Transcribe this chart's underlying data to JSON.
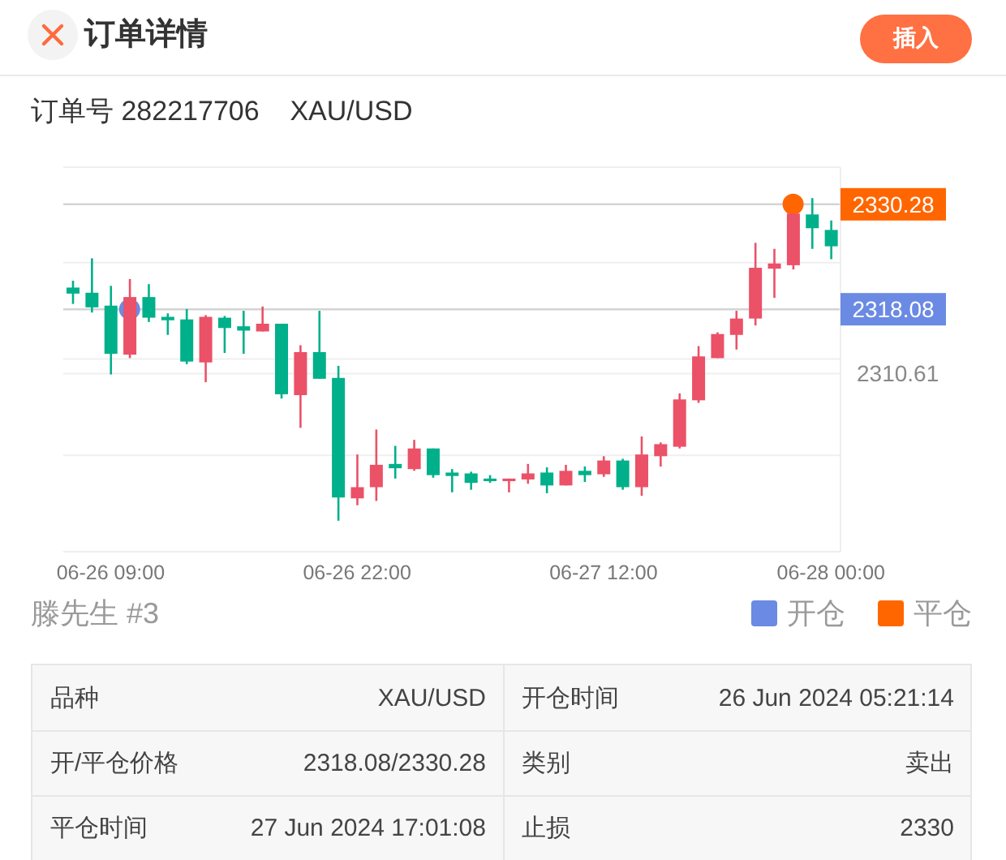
{
  "chart_data": {
    "type": "candlestick",
    "title": "订单详情",
    "subtitle": "订单号 282217706    XAU/USD",
    "annotations": [
      "插入",
      "滕先生 #3",
      "品种",
      "XAU/USD",
      "开仓时间",
      "26 Jun 2024 05:21:14",
      "开/平仓价格",
      "2318.08/2330.28",
      "类别",
      "卖出",
      "平仓时间",
      "27 Jun 2024 17:01:08",
      "止损",
      "2330"
    ],
    "categories": [
      null,
      null,
      "06-26 09:00",
      null,
      null,
      null,
      null,
      null,
      null,
      null,
      null,
      null,
      null,
      null,
      null,
      "06-26 22:00",
      null,
      null,
      null,
      null,
      null,
      null,
      null,
      null,
      null,
      null,
      null,
      null,
      "06-27 12:00",
      null,
      null,
      null,
      null,
      null,
      null,
      null,
      null,
      null,
      null,
      null,
      "06-28 00:00"
    ],
    "ohlc": [
      [
        2320.6,
        2321.4,
        2318.7,
        2319.9
      ],
      [
        2320.0,
        2324.0,
        2317.7,
        2318.3
      ],
      [
        2318.5,
        2320.8,
        2310.5,
        2312.9
      ],
      [
        2312.8,
        2321.6,
        2312.4,
        2319.5
      ],
      [
        2319.5,
        2321.0,
        2316.6,
        2317.1
      ],
      [
        2317.2,
        2317.6,
        2315.1,
        2316.8
      ],
      [
        2316.9,
        2318.1,
        2311.7,
        2312.0
      ],
      [
        2311.9,
        2317.4,
        2309.6,
        2317.2
      ],
      [
        2317.1,
        2317.3,
        2313.0,
        2315.9
      ],
      [
        2316.1,
        2317.9,
        2312.9,
        2315.6
      ],
      [
        2315.5,
        2318.4,
        2315.5,
        2316.4
      ],
      [
        2316.4,
        2316.4,
        2307.7,
        2308.2
      ],
      [
        2308.1,
        2313.9,
        2304.3,
        2313.1
      ],
      [
        2313.1,
        2317.9,
        2310.0,
        2310.0
      ],
      [
        2310.1,
        2311.5,
        2293.5,
        2296.2
      ],
      [
        2296.1,
        2301.2,
        2295.3,
        2297.4
      ],
      [
        2297.4,
        2304.1,
        2295.8,
        2300.0
      ],
      [
        2300.1,
        2302.2,
        2298.4,
        2299.6
      ],
      [
        2299.5,
        2302.9,
        2299.3,
        2301.9
      ],
      [
        2301.9,
        2301.9,
        2298.5,
        2298.8
      ],
      [
        2299.1,
        2299.5,
        2296.8,
        2298.7
      ],
      [
        2299.0,
        2299.2,
        2297.1,
        2297.9
      ],
      [
        2298.4,
        2298.8,
        2297.9,
        2298.1
      ],
      [
        2298.1,
        2298.4,
        2296.8,
        2298.4
      ],
      [
        2298.3,
        2300.1,
        2297.8,
        2299.0
      ],
      [
        2299.1,
        2299.7,
        2296.7,
        2297.6
      ],
      [
        2297.6,
        2300.0,
        2297.6,
        2299.3
      ],
      [
        2299.3,
        2299.8,
        2298.0,
        2298.8
      ],
      [
        2298.9,
        2301.0,
        2298.6,
        2300.5
      ],
      [
        2300.5,
        2300.7,
        2297.1,
        2297.4
      ],
      [
        2297.4,
        2303.3,
        2296.4,
        2301.2
      ],
      [
        2301.0,
        2302.6,
        2299.8,
        2302.4
      ],
      [
        2302.1,
        2308.3,
        2301.9,
        2307.6
      ],
      [
        2307.5,
        2313.8,
        2307.2,
        2312.6
      ],
      [
        2312.4,
        2315.4,
        2312.4,
        2315.2
      ],
      [
        2315.1,
        2317.9,
        2313.4,
        2317.0
      ],
      [
        2317.0,
        2325.8,
        2316.2,
        2322.9
      ],
      [
        2322.8,
        2325.1,
        2319.4,
        2323.4
      ],
      [
        2323.2,
        2329.2,
        2322.7,
        2329.2
      ],
      [
        2329.1,
        2331.0,
        2325.1,
        2327.5
      ],
      [
        2327.3,
        2328.4,
        2323.9,
        2325.4
      ]
    ],
    "colors": [
      "#00b08a",
      "#00b08a",
      "#00b08a",
      "#eb5167",
      "#00b08a",
      "#00b08a",
      "#00b08a",
      "#eb5167",
      "#00b08a",
      "#00b08a",
      "#eb5167",
      "#00b08a",
      "#eb5167",
      "#00b08a",
      "#00b08a",
      "#eb5167",
      "#eb5167",
      "#00b08a",
      "#eb5167",
      "#00b08a",
      "#00b08a",
      "#00b08a",
      "#00b08a",
      "#eb5167",
      "#eb5167",
      "#00b08a",
      "#eb5167",
      "#00b08a",
      "#eb5167",
      "#00b08a",
      "#eb5167",
      "#eb5167",
      "#eb5167",
      "#eb5167",
      "#eb5167",
      "#eb5167",
      "#eb5167",
      "#eb5167",
      "#eb5167",
      "#00b08a",
      "#00b08a"
    ],
    "series": [
      {
        "name": "开仓",
        "type": "scatter",
        "color": "#6b8ae3",
        "values": [
          null,
          null,
          null,
          2318.08,
          null,
          null,
          null,
          null,
          null,
          null,
          null,
          null,
          null,
          null,
          null,
          null,
          null,
          null,
          null,
          null,
          null,
          null,
          null,
          null,
          null,
          null,
          null,
          null,
          null,
          null,
          null,
          null,
          null,
          null,
          null,
          null,
          null,
          null,
          null,
          null,
          null
        ]
      },
      {
        "name": "平仓",
        "type": "scatter",
        "color": "#ff6600",
        "values": [
          null,
          null,
          null,
          null,
          null,
          null,
          null,
          null,
          null,
          null,
          null,
          null,
          null,
          null,
          null,
          null,
          null,
          null,
          null,
          null,
          null,
          null,
          null,
          null,
          null,
          null,
          null,
          null,
          null,
          null,
          null,
          null,
          null,
          null,
          null,
          null,
          null,
          null,
          2330.28,
          null,
          null
        ]
      }
    ],
    "ylim": [
      2289.9,
      2334.6
    ],
    "yticks": [
      {
        "value": 2301.1,
        "label": null
      },
      2310.61,
      {
        "value": 2312.3,
        "label": null
      },
      2318.08,
      {
        "value": 2323.5,
        "label": null
      },
      2330.28,
      {
        "value": 2334.6,
        "label": null
      }
    ],
    "grid": "y",
    "legend": "bottom right",
    "marker": "circle"
  }
}
